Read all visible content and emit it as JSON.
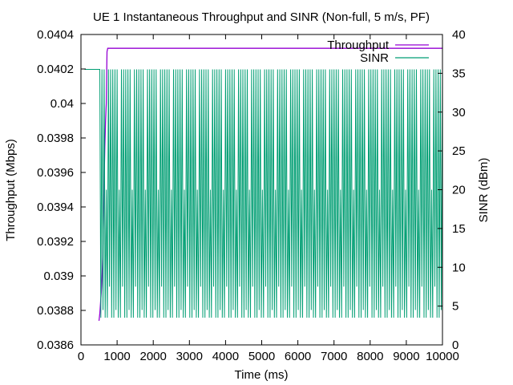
{
  "colors": {
    "throughput": "#9400d3",
    "sinr": "#009e73",
    "axis": "#000000"
  },
  "chart_data": {
    "type": "line",
    "title": "UE 1 Instantaneous Throughput and SINR (Non-full, 5 m/s, PF)",
    "xlabel": "Time (ms)",
    "ylabel": "Throughput (Mbps)",
    "y2label": "SINR (dBm)",
    "xlim": [
      0,
      10000
    ],
    "ylim": [
      0.0386,
      0.0404
    ],
    "y2lim": [
      0,
      40
    ],
    "xticks": [
      "0",
      "1000",
      "2000",
      "3000",
      "4000",
      "5000",
      "6000",
      "7000",
      "8000",
      "9000",
      "10000"
    ],
    "yticks": [
      "0.0386",
      "0.0388",
      "0.039",
      "0.0392",
      "0.0394",
      "0.0396",
      "0.0398",
      "0.04",
      "0.0402",
      "0.0404"
    ],
    "y2ticks": [
      "0",
      "5",
      "10",
      "15",
      "20",
      "25",
      "30",
      "35",
      "40"
    ],
    "legend_position": "top-right",
    "grid": false,
    "series": [
      {
        "name": "Throughput",
        "axis": "y1",
        "x": [
          500,
          520,
          540,
          560,
          580,
          600,
          620,
          640,
          660,
          680,
          700,
          720,
          740,
          1000,
          5000,
          10000
        ],
        "y": [
          0.03874,
          0.03878,
          0.03884,
          0.0389,
          0.03898,
          0.0391,
          0.0393,
          0.03955,
          0.03975,
          0.0399,
          0.04,
          0.0403,
          0.04032,
          0.04032,
          0.04032,
          0.04032
        ]
      },
      {
        "name": "SINR",
        "axis": "y2",
        "baseline": 35.5,
        "flat_until": 500,
        "oscillation_start": 520,
        "oscillation_end": 10000,
        "period_ms": 60,
        "pattern_levels": [
          35.5,
          3.5,
          35.5,
          4.5,
          35.5,
          3.5,
          20.0,
          3.5,
          35.5,
          7.5,
          35.5,
          3.5
        ]
      }
    ]
  }
}
